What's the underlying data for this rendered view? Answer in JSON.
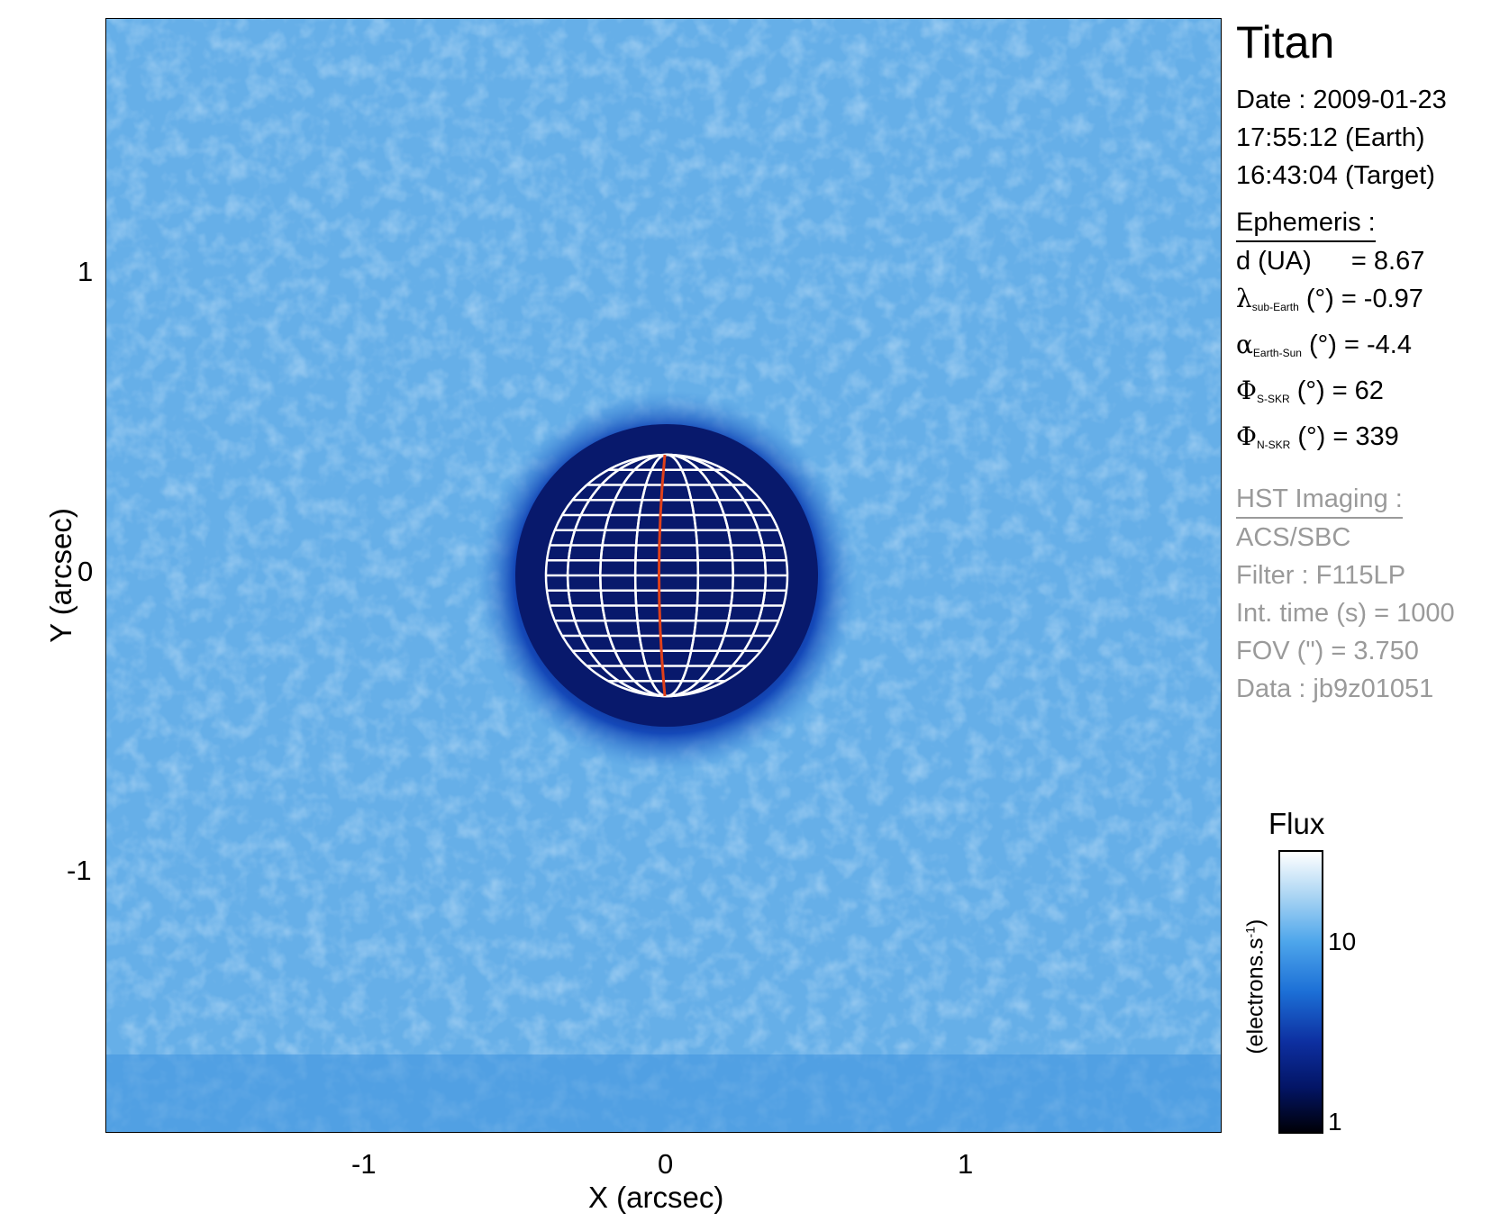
{
  "plot": {
    "x_ticks": [
      "-1",
      "0",
      "1"
    ],
    "y_ticks": [
      "1",
      "0",
      "-1"
    ],
    "x_title": "X (arcsec)",
    "y_title": "Y (arcsec)"
  },
  "info": {
    "target": "Titan",
    "date_line": "Date : 2009-01-23",
    "time_earth": "17:55:12 (Earth)",
    "time_target": "16:43:04 (Target)",
    "ephemeris_head": "Ephemeris :",
    "d_label": "d (UA)",
    "d_value": "= 8.67",
    "lambda_sub": "sub-Earth",
    "lambda_rest": "(°) = -0.97",
    "alpha_sub": "Earth-Sun",
    "alpha_rest": "(°) = -4.4",
    "phi_s_sub": "S-SKR",
    "phi_s_rest": "(°)   = 62",
    "phi_n_sub": "N-SKR",
    "phi_n_rest": "(°)   = 339",
    "hst_head": "HST Imaging :",
    "instrument": "ACS/SBC",
    "filter": "Filter : F115LP",
    "int_time": "Int. time (s) = 1000",
    "fov": "FOV (\") = 3.750",
    "dataset": "Data : jb9z01051"
  },
  "colorbar": {
    "title": "Flux",
    "unit": "(electrons.s",
    "unit_sup": "-1",
    "unit_close": ")",
    "ticks": [
      "10",
      "1"
    ]
  },
  "colors": {
    "background_blue": "#6ab2ea",
    "planet_dark": "#0a1f6e",
    "grid": "#ffffff",
    "meridian": "#e0401a"
  }
}
